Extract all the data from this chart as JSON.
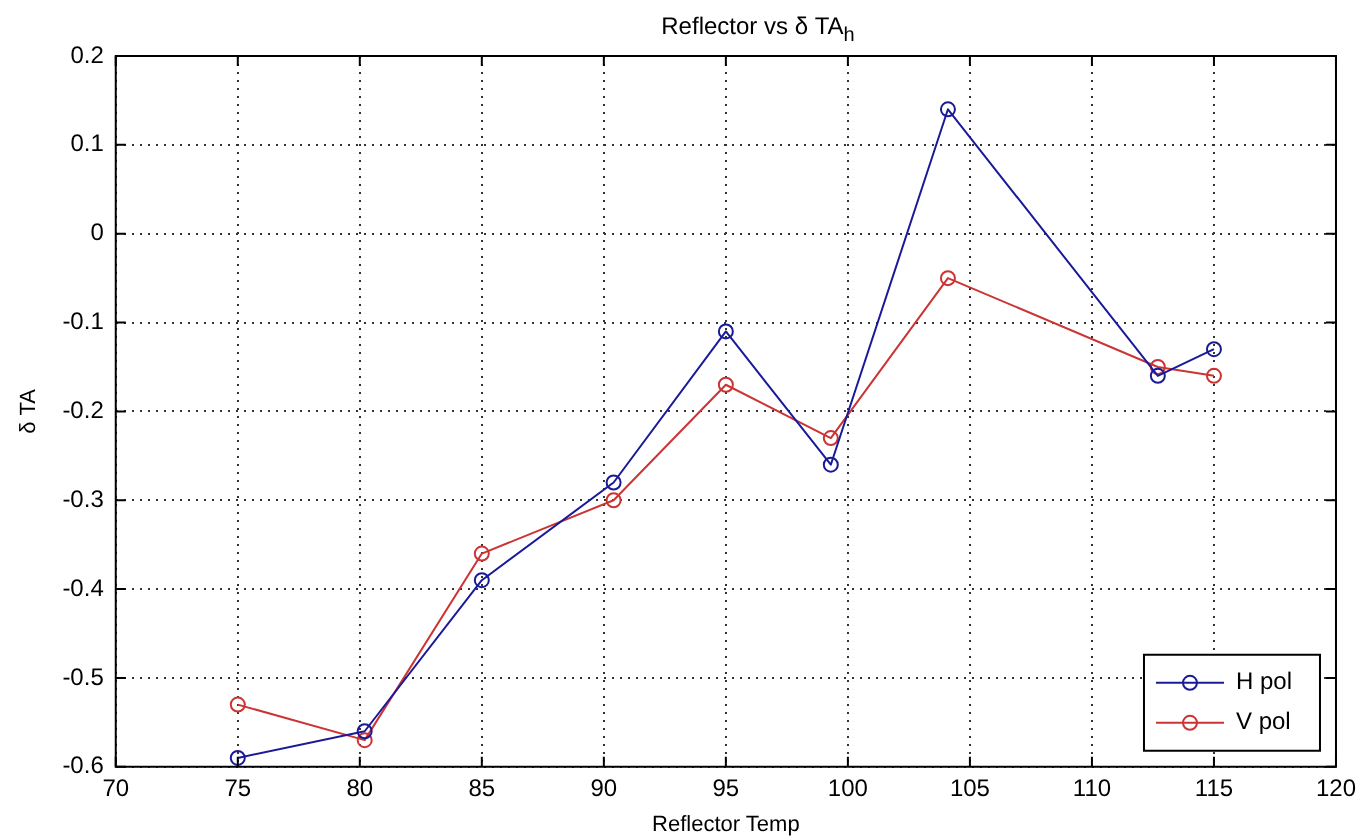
{
  "chart_data": {
    "type": "line",
    "title": "Reflector vs δ TA$_{h}$",
    "xlabel": "Reflector Temp",
    "ylabel": "δ TA",
    "xlim": [
      70,
      120
    ],
    "xticks": [
      70,
      75,
      80,
      85,
      90,
      95,
      100,
      105,
      110,
      115,
      120
    ],
    "ylim": [
      -0.6,
      0.2
    ],
    "yticks": [
      -0.6,
      -0.5,
      -0.4,
      -0.3,
      -0.2,
      -0.1,
      0,
      0.1,
      0.2
    ],
    "grid": true,
    "legend": "bottom right",
    "marker": "circle",
    "line_style": "solid",
    "series": [
      {
        "name": "H pol",
        "color": "#1a1a99",
        "x": [
          75,
          80.2,
          85,
          90.4,
          95,
          99.3,
          104.1,
          112.7,
          115
        ],
        "values": [
          -0.59,
          -0.56,
          -0.39,
          -0.28,
          -0.11,
          -0.26,
          0.14,
          -0.16,
          -0.13
        ]
      },
      {
        "name": "V pol",
        "color": "#cc3333",
        "x": [
          75,
          80.2,
          85,
          90.4,
          95,
          99.3,
          104.1,
          112.7,
          115
        ],
        "values": [
          -0.53,
          -0.57,
          -0.36,
          -0.3,
          -0.17,
          -0.23,
          -0.05,
          -0.15,
          -0.16
        ]
      }
    ]
  }
}
